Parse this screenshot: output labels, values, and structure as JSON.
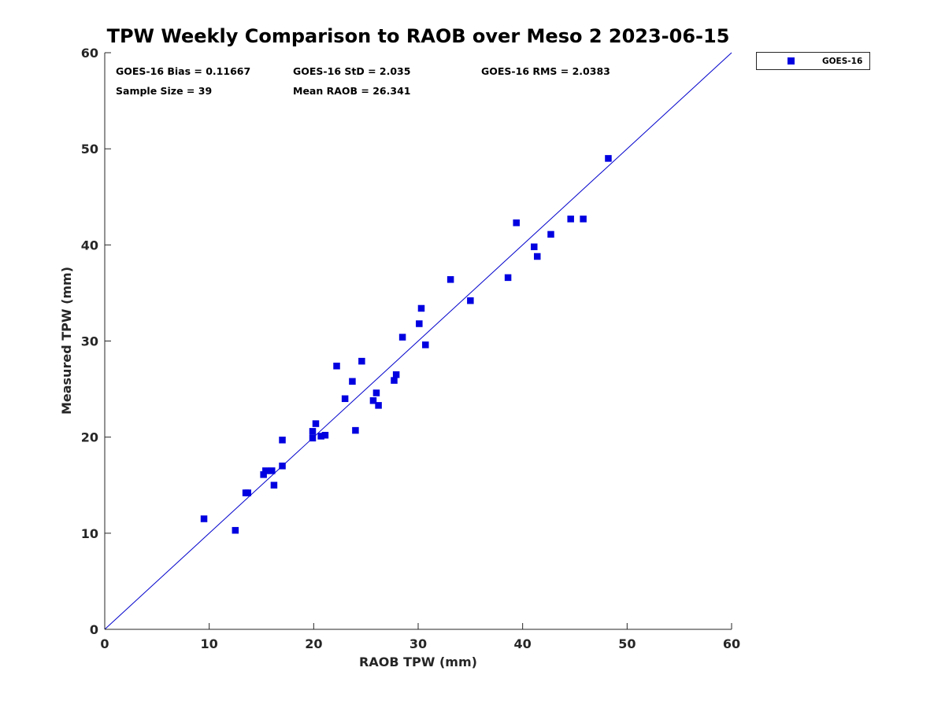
{
  "chart_data": {
    "type": "scatter",
    "title": "TPW Weekly Comparison to RAOB over Meso 2 2023-06-15",
    "xlabel": "RAOB TPW (mm)",
    "ylabel": "Measured TPW (mm)",
    "xlim": [
      0,
      60
    ],
    "ylim": [
      0,
      60
    ],
    "xticks": [
      0,
      10,
      20,
      30,
      40,
      50,
      60
    ],
    "yticks": [
      0,
      10,
      20,
      30,
      40,
      50,
      60
    ],
    "xtick_labels": [
      "0",
      "10",
      "20",
      "30",
      "40",
      "50",
      "60"
    ],
    "ytick_labels": [
      "0",
      "10",
      "20",
      "30",
      "40",
      "50",
      "60"
    ],
    "grid": false,
    "legend_position": "outside-top-right",
    "reference_line": {
      "name": "1:1 line",
      "x": [
        0,
        60
      ],
      "y": [
        0,
        60
      ],
      "color": "#0000cc"
    },
    "series": [
      {
        "name": "GOES-16",
        "color": "#0000e0",
        "marker": "square",
        "points": [
          [
            9.5,
            11.5
          ],
          [
            12.5,
            10.3
          ],
          [
            13.5,
            14.2
          ],
          [
            13.7,
            14.2
          ],
          [
            15.2,
            16.1
          ],
          [
            15.4,
            16.5
          ],
          [
            16.0,
            16.5
          ],
          [
            16.2,
            15.0
          ],
          [
            17.0,
            19.7
          ],
          [
            17.0,
            17.0
          ],
          [
            19.9,
            20.6
          ],
          [
            19.9,
            19.9
          ],
          [
            20.2,
            21.4
          ],
          [
            20.7,
            20.1
          ],
          [
            21.1,
            20.2
          ],
          [
            22.2,
            27.4
          ],
          [
            23.0,
            24.0
          ],
          [
            23.7,
            25.8
          ],
          [
            24.0,
            20.7
          ],
          [
            24.6,
            27.9
          ],
          [
            25.7,
            23.8
          ],
          [
            26.0,
            24.6
          ],
          [
            26.2,
            23.3
          ],
          [
            27.7,
            25.9
          ],
          [
            27.9,
            26.5
          ],
          [
            28.5,
            30.4
          ],
          [
            30.1,
            31.8
          ],
          [
            30.3,
            33.4
          ],
          [
            30.7,
            29.6
          ],
          [
            33.1,
            36.4
          ],
          [
            35.0,
            34.2
          ],
          [
            38.6,
            36.6
          ],
          [
            39.4,
            42.3
          ],
          [
            41.1,
            39.8
          ],
          [
            41.4,
            38.8
          ],
          [
            42.7,
            41.1
          ],
          [
            44.6,
            42.7
          ],
          [
            45.8,
            42.7
          ],
          [
            48.2,
            49.0
          ]
        ]
      }
    ],
    "annotations": [
      "GOES-16 Bias = 0.11667",
      "GOES-16 StD = 2.035",
      "GOES-16 RMS = 2.0383",
      "Sample Size = 39",
      "Mean RAOB = 26.341"
    ]
  }
}
